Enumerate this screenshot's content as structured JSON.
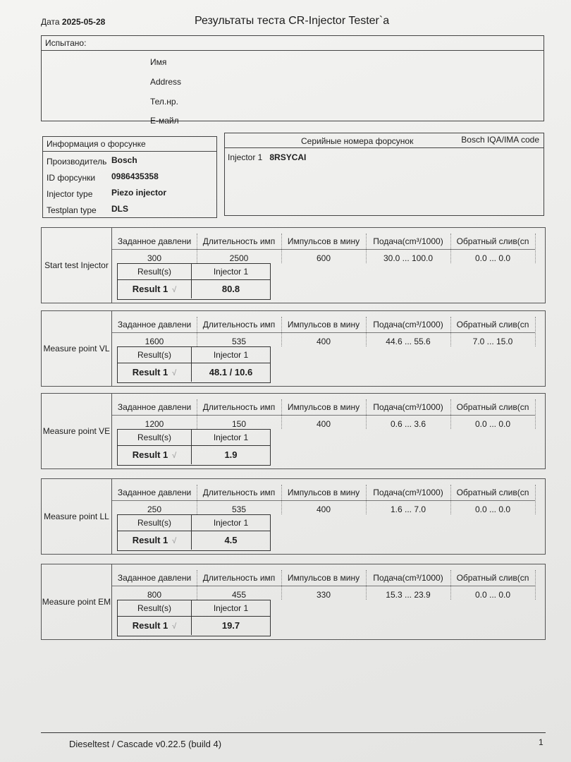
{
  "header": {
    "date_label": "Дата",
    "date": "2025-05-28",
    "title": "Результаты теста CR-Injector Tester`a"
  },
  "tested": {
    "title": "Испытано:",
    "fields": [
      "Имя",
      "Address",
      "Тел.нр.",
      "E-майл"
    ]
  },
  "injector_info": {
    "title": "Информация о форсунке",
    "rows": [
      {
        "label": "Производитель",
        "value": "Bosch"
      },
      {
        "label": "ID форсунки",
        "value": "0986435358"
      },
      {
        "label": "Injector type",
        "value": "Piezo injector"
      },
      {
        "label": "Testplan type",
        "value": "DLS"
      }
    ]
  },
  "serials": {
    "title": "Серийные номера форсунок",
    "code_title": "Bosch IQA/IMA code",
    "rows": [
      {
        "label": "Injector 1",
        "value": "8RSYCAI"
      }
    ]
  },
  "columns": [
    "Заданное давлени",
    "Длительность имп",
    "Импульсов в мину",
    "Подача(cm³/1000)",
    "Обратный слив(cn"
  ],
  "result_headers": {
    "results": "Result(s)",
    "injector": "Injector 1"
  },
  "tests": [
    {
      "name": "Start test Injector",
      "values": [
        "300",
        "2500",
        "600",
        "30.0 ... 100.0",
        "0.0 ... 0.0"
      ],
      "result_label": "Result 1",
      "check": "√",
      "result": "80.8"
    },
    {
      "name": "Measure point VL",
      "values": [
        "1600",
        "535",
        "400",
        "44.6 ... 55.6",
        "7.0 ... 15.0"
      ],
      "result_label": "Result 1",
      "check": "√",
      "result": "48.1 / 10.6"
    },
    {
      "name": "Measure point VE",
      "values": [
        "1200",
        "150",
        "400",
        "0.6 ... 3.6",
        "0.0 ... 0.0"
      ],
      "result_label": "Result 1",
      "check": "√",
      "result": "1.9"
    },
    {
      "name": "Measure point LL",
      "values": [
        "250",
        "535",
        "400",
        "1.6 ... 7.0",
        "0.0 ... 0.0"
      ],
      "result_label": "Result 1",
      "check": "√",
      "result": "4.5"
    },
    {
      "name": "Measure point EM",
      "values": [
        "800",
        "455",
        "330",
        "15.3 ... 23.9",
        "0.0 ... 0.0"
      ],
      "result_label": "Result 1",
      "check": "√",
      "result": "19.7"
    }
  ],
  "footer": {
    "software": "Dieseltest / Cascade v0.22.5 (build 4)",
    "page": "1"
  }
}
